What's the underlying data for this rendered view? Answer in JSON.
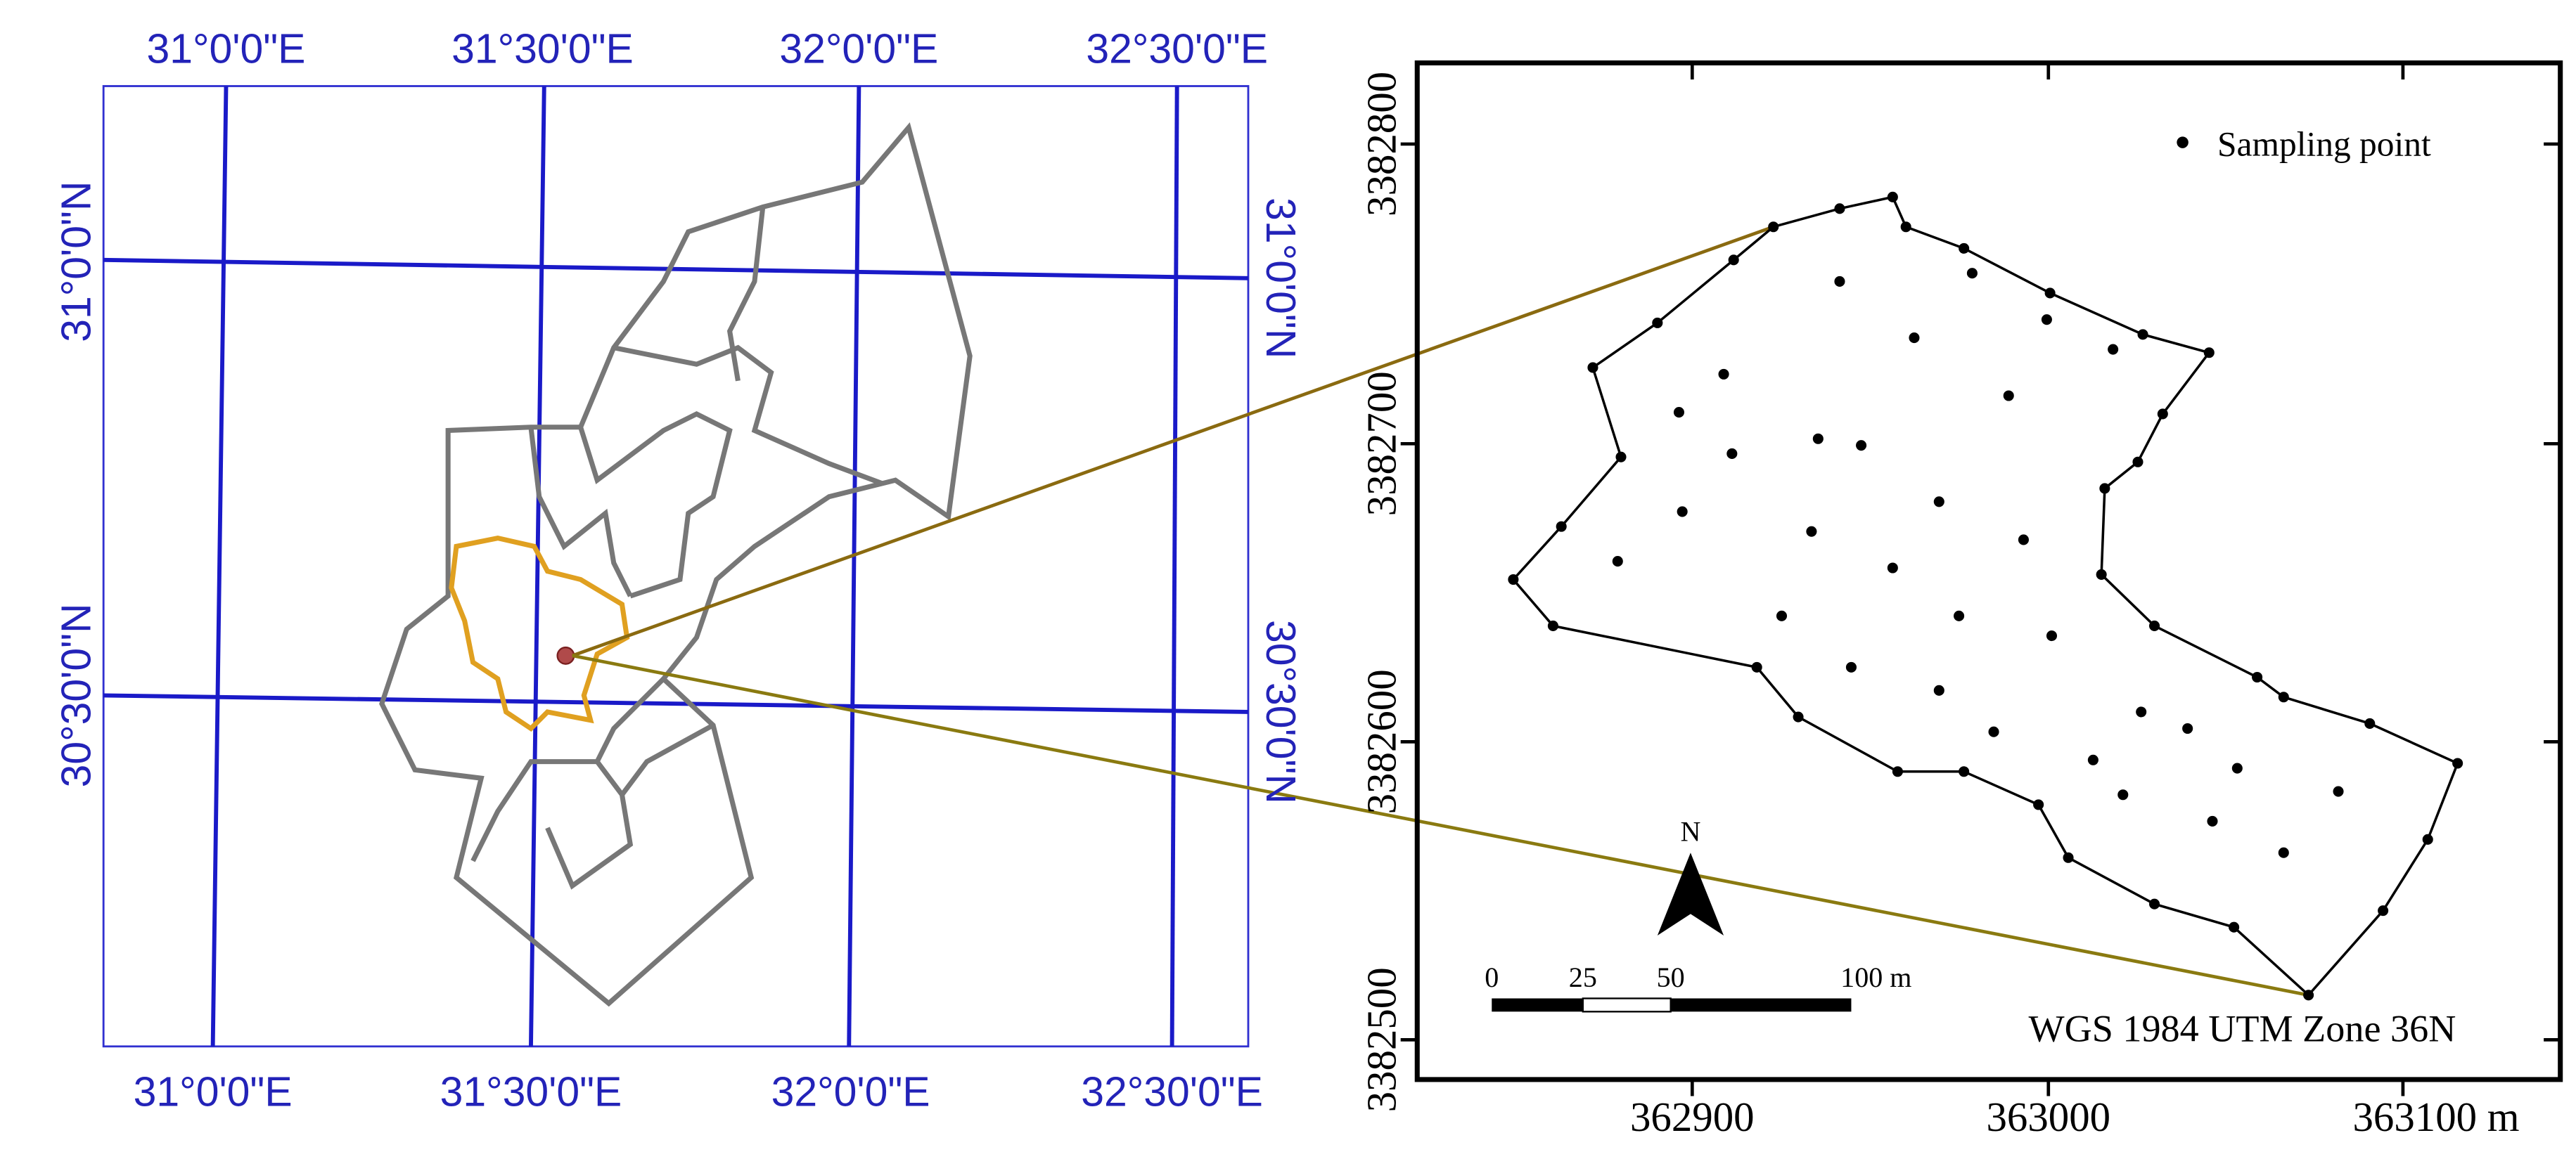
{
  "left_map": {
    "top_labels": [
      "31°0'0\"E",
      "31°30'0\"E",
      "32°0'0\"E",
      "32°30'0\"E"
    ],
    "bottom_labels": [
      "31°0'0\"E",
      "31°30'0\"E",
      "32°0'0\"E",
      "32°30'0\"E"
    ],
    "left_labels": [
      "31°0'0\"N",
      "30°30'0\"N"
    ],
    "right_labels": [
      "31°0'0\"N",
      "30°30'0\"N"
    ]
  },
  "right_map": {
    "legend": "Sampling point",
    "y_ticks": [
      "3382800",
      "3382700",
      "3382600",
      "3382500"
    ],
    "x_ticks": [
      "362900",
      "363000",
      "363100 m"
    ],
    "north": "N",
    "scale_labels": [
      "0",
      "25",
      "50",
      "100 m"
    ],
    "projection": "WGS 1984 UTM Zone 36N"
  }
}
